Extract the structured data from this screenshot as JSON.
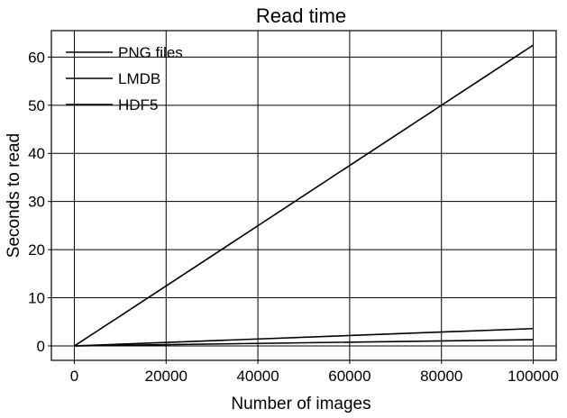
{
  "chart_data": {
    "type": "line",
    "title": "Read time",
    "xlabel": "Number of images",
    "ylabel": "Seconds to read",
    "xlim": [
      -5000,
      105000
    ],
    "ylim": [
      -3,
      65.5
    ],
    "x_ticks": [
      0,
      20000,
      40000,
      60000,
      80000,
      100000
    ],
    "y_ticks": [
      0,
      10,
      20,
      30,
      40,
      50,
      60
    ],
    "grid": true,
    "legend_position": "top-left",
    "colors": {
      "line": "#000000",
      "grid": "#000000",
      "background": "#ffffff"
    },
    "x": [
      10,
      100,
      1000,
      10000,
      100000
    ],
    "series": [
      {
        "name": "PNG files",
        "values": [
          0.006,
          0.06,
          0.62,
          6.2,
          62.5
        ]
      },
      {
        "name": "LMDB",
        "values": [
          0.0004,
          0.004,
          0.035,
          0.36,
          3.6
        ]
      },
      {
        "name": "HDF5",
        "values": [
          0.0001,
          0.0013,
          0.013,
          0.13,
          1.3
        ]
      }
    ]
  }
}
